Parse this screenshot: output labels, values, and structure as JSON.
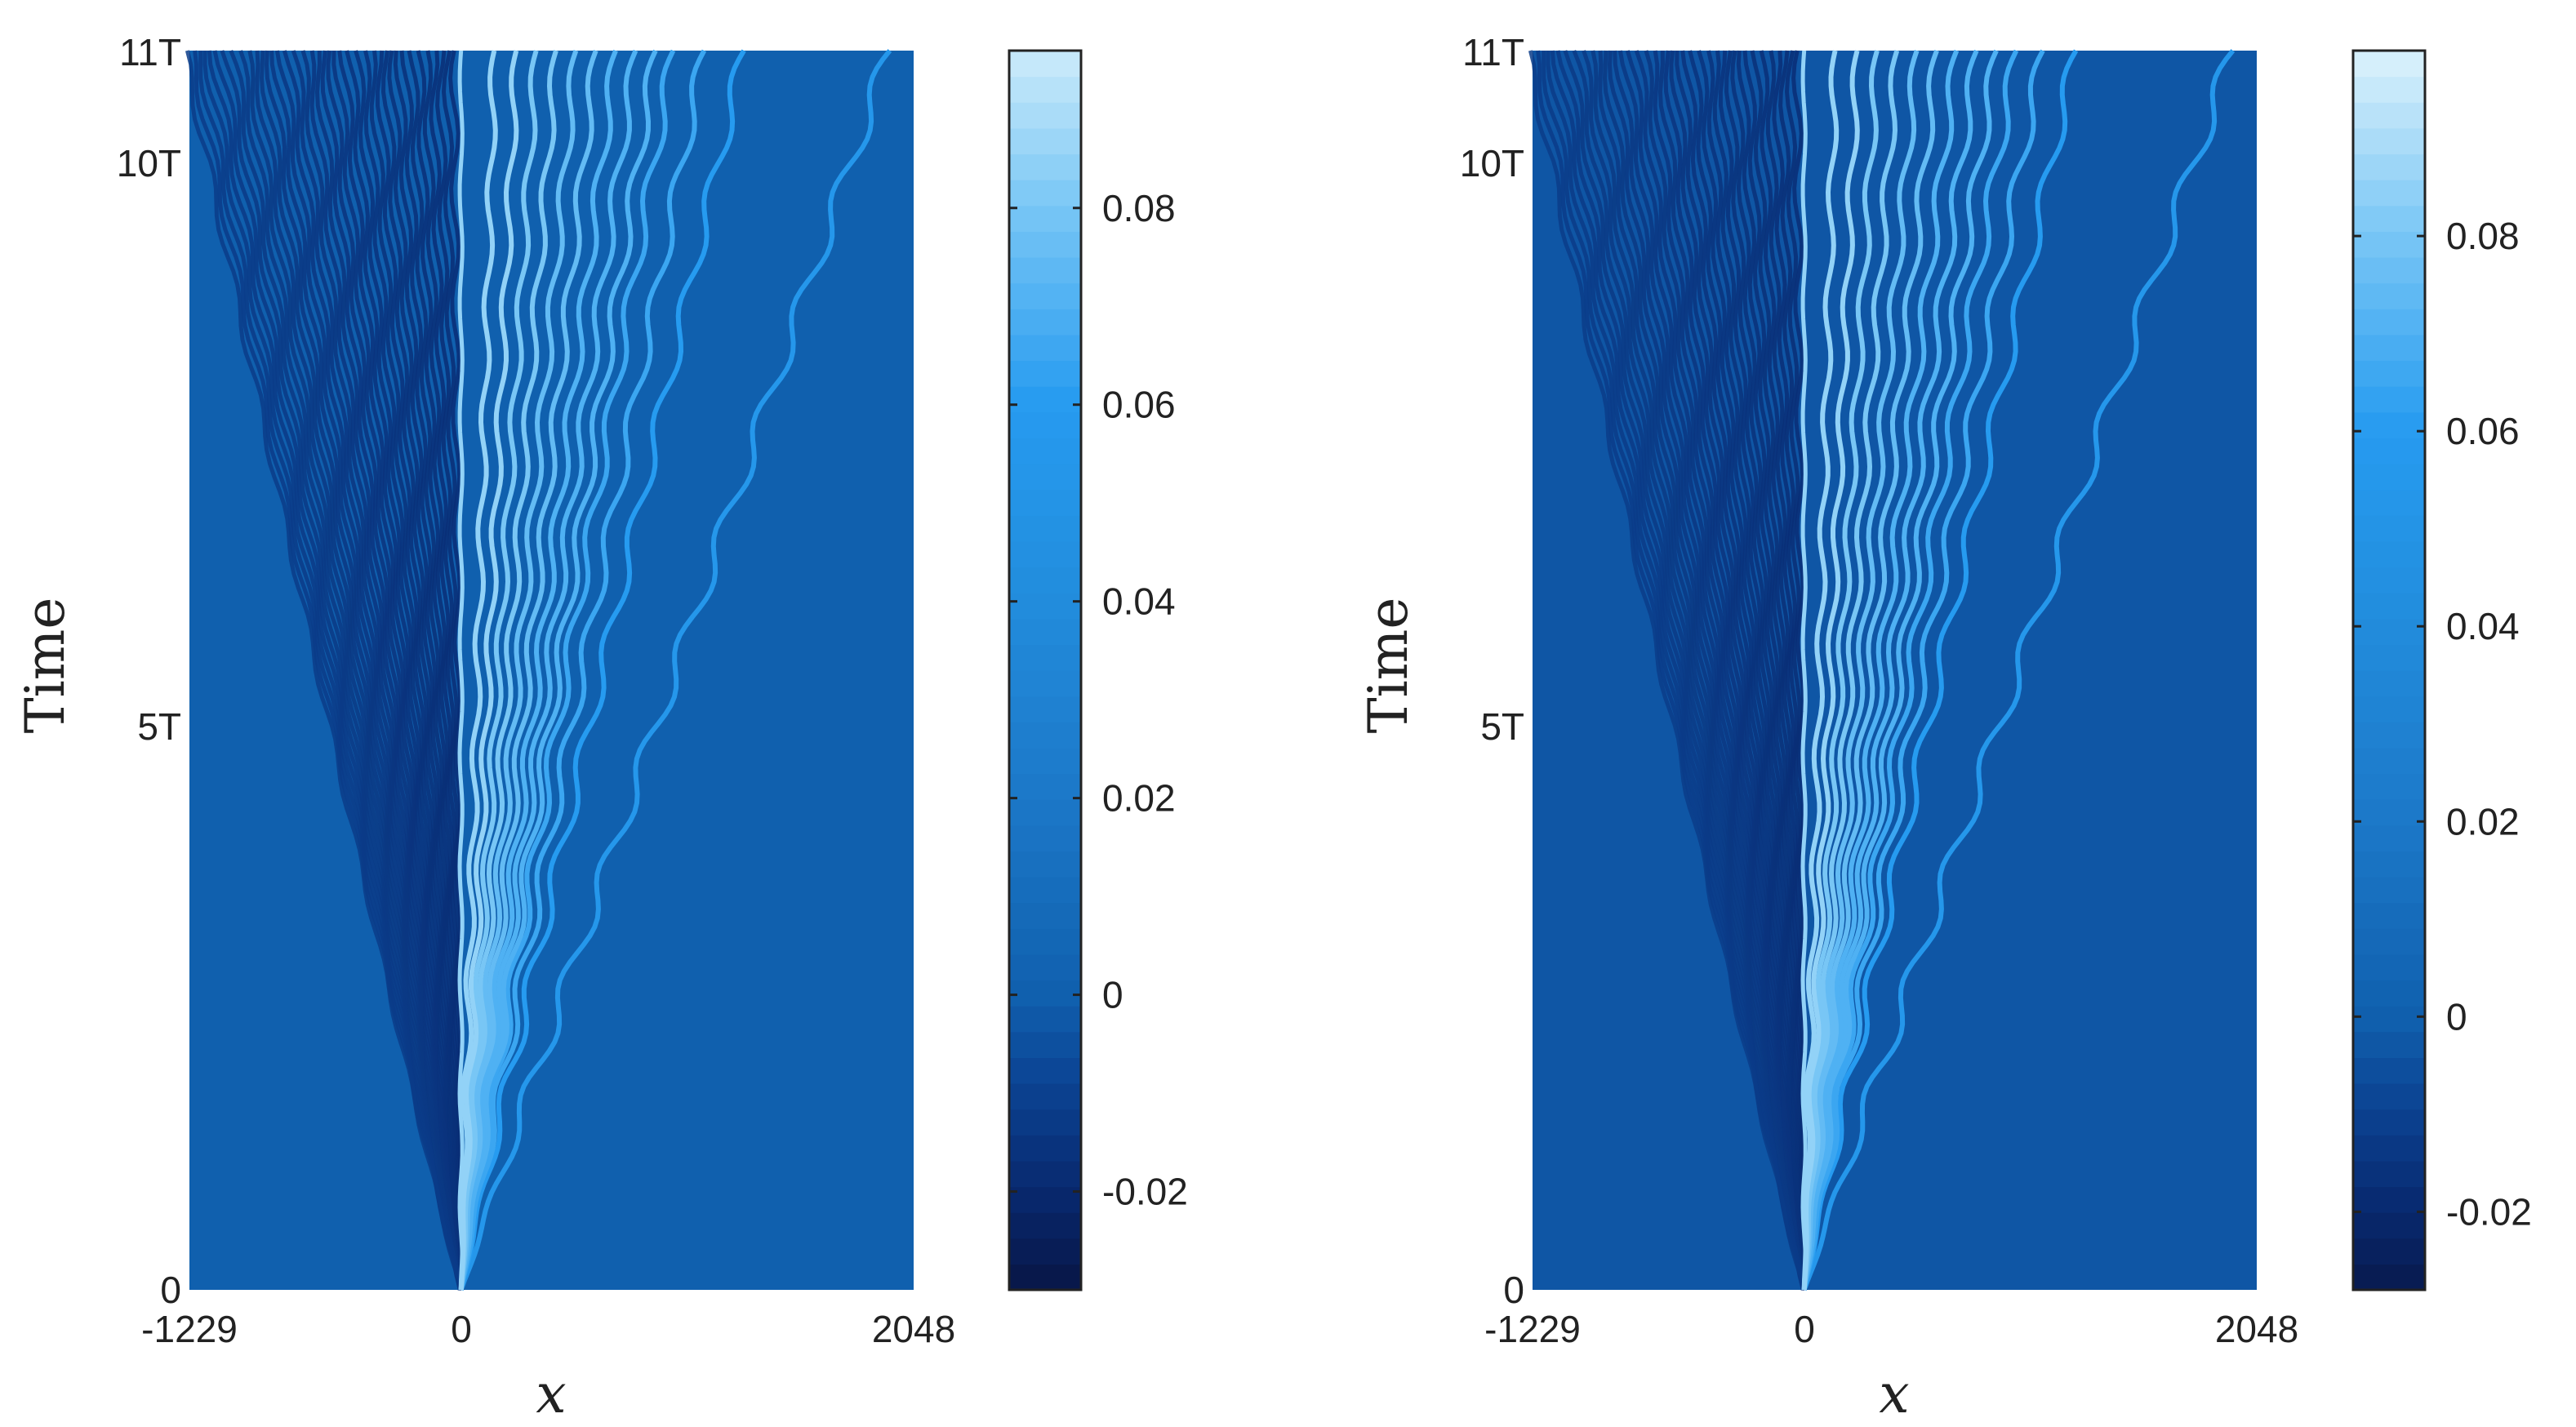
{
  "chart_data": [
    {
      "type": "heatmap",
      "title": "",
      "xlabel": "x",
      "ylabel": "Time",
      "xlim": [
        -1229,
        2048
      ],
      "ylim": [
        0,
        11
      ],
      "xticks": [
        {
          "value": -1229,
          "label": "-1229"
        },
        {
          "value": 0,
          "label": "0"
        },
        {
          "value": 2048,
          "label": "2048"
        }
      ],
      "yticks": [
        {
          "value": 0,
          "label": "0"
        },
        {
          "value": 5,
          "label": "5T"
        },
        {
          "value": 10,
          "label": "10T"
        },
        {
          "value": 11,
          "label": "11T"
        }
      ],
      "background_value": 0,
      "colorbar": {
        "range": [
          -0.03,
          0.096
        ],
        "ticks": [
          {
            "value": -0.02,
            "label": "-0.02"
          },
          {
            "value": 0,
            "label": "0"
          },
          {
            "value": 0.02,
            "label": "0.02"
          },
          {
            "value": 0.04,
            "label": "0.04"
          },
          {
            "value": 0.06,
            "label": "0.06"
          },
          {
            "value": 0.08,
            "label": "0.08"
          }
        ]
      },
      "right_bright_rays": [
        {
          "x_end": 1940,
          "peak": 0.055
        },
        {
          "x_end": 1280,
          "peak": 0.06
        },
        {
          "x_end": 1100,
          "peak": 0.065
        },
        {
          "x_end": 960,
          "peak": 0.065
        },
        {
          "x_end": 880,
          "peak": 0.07
        },
        {
          "x_end": 790,
          "peak": 0.07
        },
        {
          "x_end": 700,
          "peak": 0.07
        },
        {
          "x_end": 610,
          "peak": 0.075
        },
        {
          "x_end": 520,
          "peak": 0.075
        },
        {
          "x_end": 430,
          "peak": 0.08
        },
        {
          "x_end": 340,
          "peak": 0.08
        },
        {
          "x_end": 250,
          "peak": 0.085
        },
        {
          "x_end": 150,
          "peak": 0.085
        }
      ],
      "left_dark_ray_count": 40,
      "left_dark_ray_peak": -0.018
    },
    {
      "type": "heatmap",
      "title": "",
      "xlabel": "x",
      "ylabel": "Time",
      "xlim": [
        -1229,
        2048
      ],
      "ylim": [
        0,
        11
      ],
      "xticks": [
        {
          "value": -1229,
          "label": "-1229"
        },
        {
          "value": 0,
          "label": "0"
        },
        {
          "value": 2048,
          "label": "2048"
        }
      ],
      "yticks": [
        {
          "value": 0,
          "label": "0"
        },
        {
          "value": 5,
          "label": "5T"
        },
        {
          "value": 10,
          "label": "10T"
        },
        {
          "value": 11,
          "label": "11T"
        }
      ],
      "background_value": -0.003,
      "colorbar": {
        "range": [
          -0.028,
          0.099
        ],
        "ticks": [
          {
            "value": -0.02,
            "label": "-0.02"
          },
          {
            "value": 0,
            "label": "0"
          },
          {
            "value": 0.02,
            "label": "0.02"
          },
          {
            "value": 0.04,
            "label": "0.04"
          },
          {
            "value": 0.06,
            "label": "0.06"
          },
          {
            "value": 0.08,
            "label": "0.08"
          }
        ]
      },
      "right_bright_rays": [
        {
          "x_end": 1940,
          "peak": 0.055
        },
        {
          "x_end": 1230,
          "peak": 0.06
        },
        {
          "x_end": 1080,
          "peak": 0.065
        },
        {
          "x_end": 960,
          "peak": 0.065
        },
        {
          "x_end": 870,
          "peak": 0.07
        },
        {
          "x_end": 780,
          "peak": 0.07
        },
        {
          "x_end": 690,
          "peak": 0.07
        },
        {
          "x_end": 600,
          "peak": 0.075
        },
        {
          "x_end": 510,
          "peak": 0.075
        },
        {
          "x_end": 420,
          "peak": 0.08
        },
        {
          "x_end": 330,
          "peak": 0.08
        },
        {
          "x_end": 240,
          "peak": 0.085
        },
        {
          "x_end": 140,
          "peak": 0.085
        }
      ],
      "left_dark_ray_count": 40,
      "left_dark_ray_peak": -0.018
    }
  ]
}
